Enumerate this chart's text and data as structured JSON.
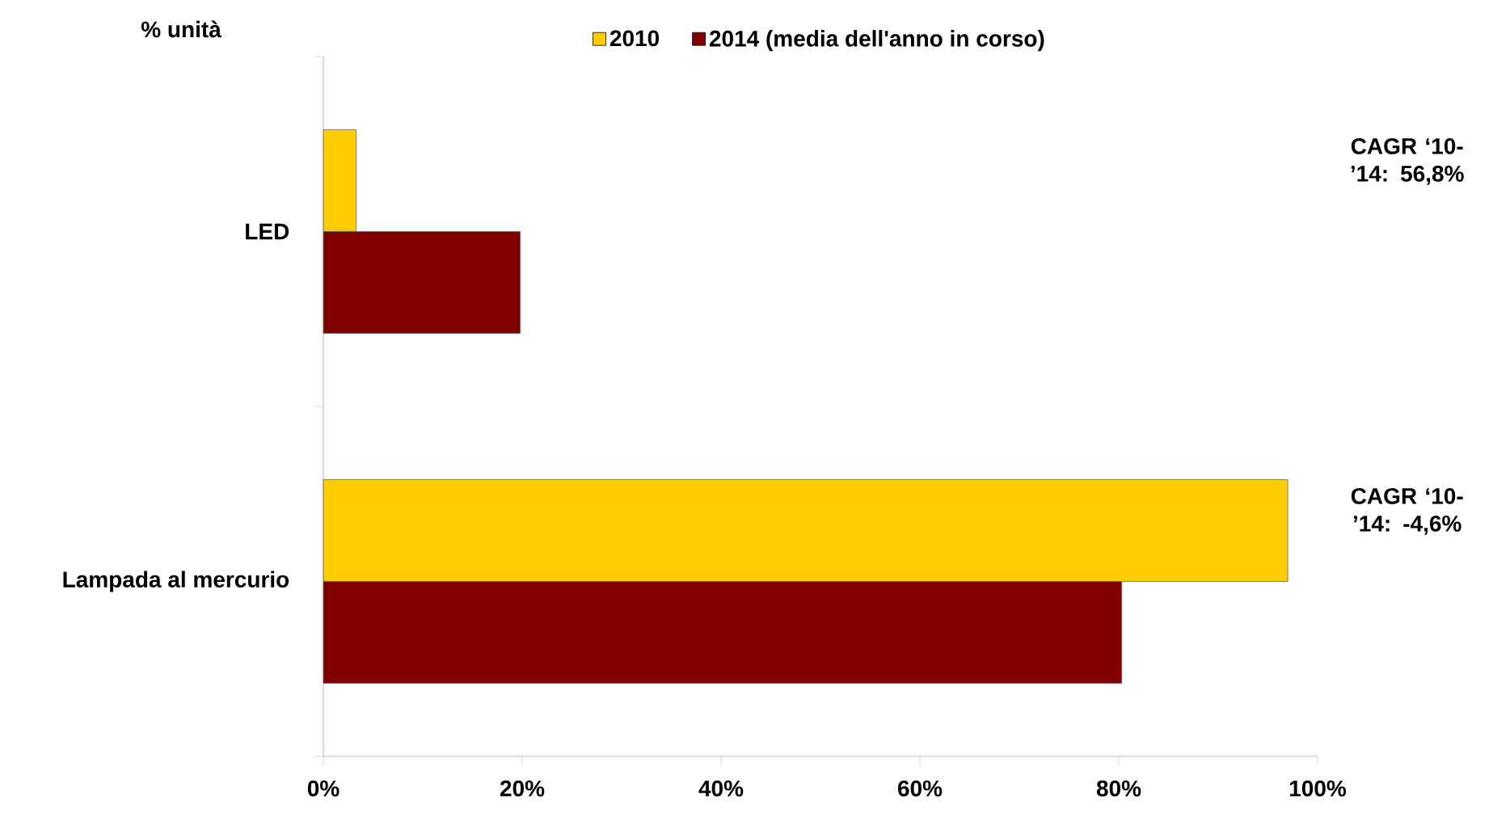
{
  "chart_data": {
    "type": "bar",
    "orientation": "horizontal",
    "ylabel": "% unità",
    "categories": [
      "LED",
      "Lampada al mercurio"
    ],
    "series": [
      {
        "name": "2010",
        "color": "#ffcc00",
        "values": [
          3.3,
          97
        ]
      },
      {
        "name": "2014 (media dell'anno in corso)",
        "color": "#800000",
        "values": [
          19.8,
          80.3
        ]
      }
    ],
    "xlim": [
      0,
      100
    ],
    "xticks": [
      {
        "value": 0,
        "label": "0%"
      },
      {
        "value": 20,
        "label": "20%"
      },
      {
        "value": 40,
        "label": "40%"
      },
      {
        "value": 60,
        "label": "60%"
      },
      {
        "value": 80,
        "label": "80%"
      },
      {
        "value": 100,
        "label": "100%"
      }
    ],
    "legend": "top",
    "grid": false,
    "annotations": [
      "CAGR ‘10-’14: 56,8%",
      "CAGR ‘10-’14: -4,6%"
    ]
  }
}
